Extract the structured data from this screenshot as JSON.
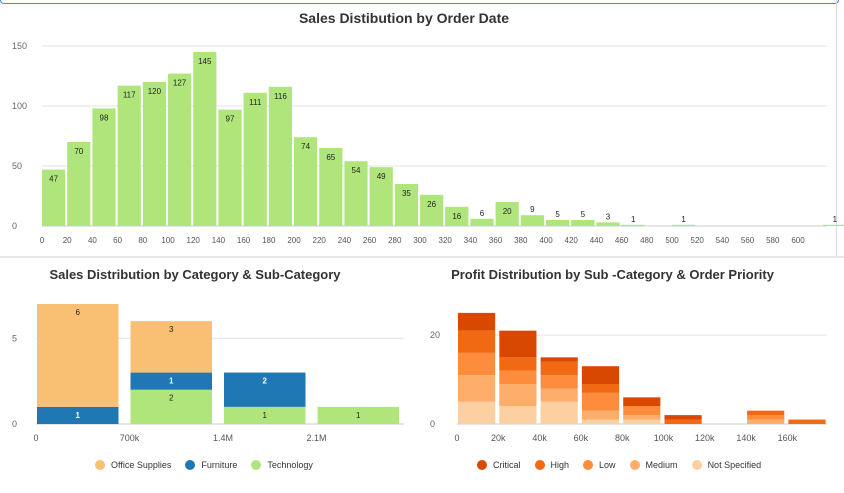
{
  "charts": {
    "histogram": {
      "title": "Sales Distibution by Order Date",
      "chart_data": {
        "type": "bar",
        "x_ticks": [
          "0",
          "20",
          "40",
          "60",
          "80",
          "100",
          "120",
          "140",
          "160",
          "180",
          "200",
          "220",
          "240",
          "260",
          "280",
          "300",
          "320",
          "340",
          "360",
          "380",
          "400",
          "420",
          "440",
          "460",
          "480",
          "500",
          "520",
          "540",
          "560",
          "580",
          "600"
        ],
        "y_ticks": [
          "0",
          "50",
          "100",
          "150"
        ],
        "ylim": [
          0,
          150
        ],
        "bin_width": 20,
        "bins": [
          {
            "x": 0,
            "value": 47
          },
          {
            "x": 20,
            "value": 70
          },
          {
            "x": 40,
            "value": 98
          },
          {
            "x": 60,
            "value": 117
          },
          {
            "x": 80,
            "value": 120
          },
          {
            "x": 100,
            "value": 127
          },
          {
            "x": 120,
            "value": 145
          },
          {
            "x": 140,
            "value": 97
          },
          {
            "x": 160,
            "value": 111
          },
          {
            "x": 180,
            "value": 116
          },
          {
            "x": 200,
            "value": 74
          },
          {
            "x": 220,
            "value": 65
          },
          {
            "x": 240,
            "value": 54
          },
          {
            "x": 260,
            "value": 49
          },
          {
            "x": 280,
            "value": 35
          },
          {
            "x": 300,
            "value": 26
          },
          {
            "x": 320,
            "value": 16
          },
          {
            "x": 340,
            "value": 6
          },
          {
            "x": 360,
            "value": 20
          },
          {
            "x": 380,
            "value": 9
          },
          {
            "x": 400,
            "value": 5
          },
          {
            "x": 420,
            "value": 5
          },
          {
            "x": 440,
            "value": 3
          },
          {
            "x": 460,
            "value": 1
          },
          {
            "x": 500,
            "value": 1
          },
          {
            "x": 620,
            "value": 1
          }
        ],
        "color": "#b0e57c"
      }
    },
    "category": {
      "title": "Sales Distribution by Category & Sub-Category",
      "chart_data": {
        "type": "bar",
        "stacked": true,
        "x_ticks": [
          "0",
          "700k",
          "1.4M",
          "2.1M"
        ],
        "y_ticks": [
          "0",
          "5"
        ],
        "ylim": [
          0,
          7
        ],
        "bins": [
          {
            "x": [
              0,
              700000
            ],
            "stack": [
              {
                "series": "Furniture",
                "value": 1
              },
              {
                "series": "Office Supplies",
                "value": 6
              }
            ]
          },
          {
            "x": [
              700000,
              1400000
            ],
            "stack": [
              {
                "series": "Technology",
                "value": 2
              },
              {
                "series": "Furniture",
                "value": 1
              },
              {
                "series": "Office Supplies",
                "value": 3
              }
            ]
          },
          {
            "x": [
              1400000,
              2100000
            ],
            "stack": [
              {
                "series": "Technology",
                "value": 1
              },
              {
                "series": "Furniture",
                "value": 2
              }
            ]
          },
          {
            "x": [
              2100000,
              2800000
            ],
            "stack": [
              {
                "series": "Technology",
                "value": 1
              }
            ]
          }
        ],
        "series": [
          {
            "name": "Office Supplies",
            "color": "#f9bf73"
          },
          {
            "name": "Furniture",
            "color": "#1f77b4"
          },
          {
            "name": "Technology",
            "color": "#b0e57c"
          }
        ],
        "legend": "bottom"
      }
    },
    "profit": {
      "title": "Profit Distribution by Sub -Category & Order Priority",
      "chart_data": {
        "type": "bar",
        "stacked": true,
        "x_ticks": [
          "0",
          "20k",
          "40k",
          "60k",
          "80k",
          "100k",
          "120k",
          "140k",
          "160k"
        ],
        "y_ticks": [
          "0",
          "20"
        ],
        "ylim": [
          0,
          27
        ],
        "bin_width": 18000,
        "bins": [
          {
            "x": 0,
            "values": [
              5,
              6,
              5,
              5,
              4
            ]
          },
          {
            "x": 20000,
            "values": [
              4,
              5,
              3,
              3,
              6
            ]
          },
          {
            "x": 40000,
            "values": [
              5,
              3,
              3,
              3,
              1
            ]
          },
          {
            "x": 60000,
            "values": [
              1,
              2,
              4,
              2,
              4
            ]
          },
          {
            "x": 80000,
            "values": [
              1,
              1,
              2,
              0,
              2
            ]
          },
          {
            "x": 100000,
            "values": [
              0,
              0,
              0,
              1,
              1
            ]
          },
          {
            "x": 140000,
            "values": [
              0,
              1,
              1,
              1,
              0
            ]
          },
          {
            "x": 160000,
            "values": [
              0,
              0,
              0,
              1,
              0
            ]
          }
        ],
        "series": [
          {
            "name": "Not Specified",
            "color": "#fdd0a2"
          },
          {
            "name": "Medium",
            "color": "#fdae6b"
          },
          {
            "name": "Low",
            "color": "#fd8d3c"
          },
          {
            "name": "High",
            "color": "#f16913"
          },
          {
            "name": "Critical",
            "color": "#d94801"
          }
        ],
        "legend_order": [
          "Critical",
          "High",
          "Low",
          "Medium",
          "Not Specified"
        ],
        "legend": "bottom"
      }
    }
  }
}
